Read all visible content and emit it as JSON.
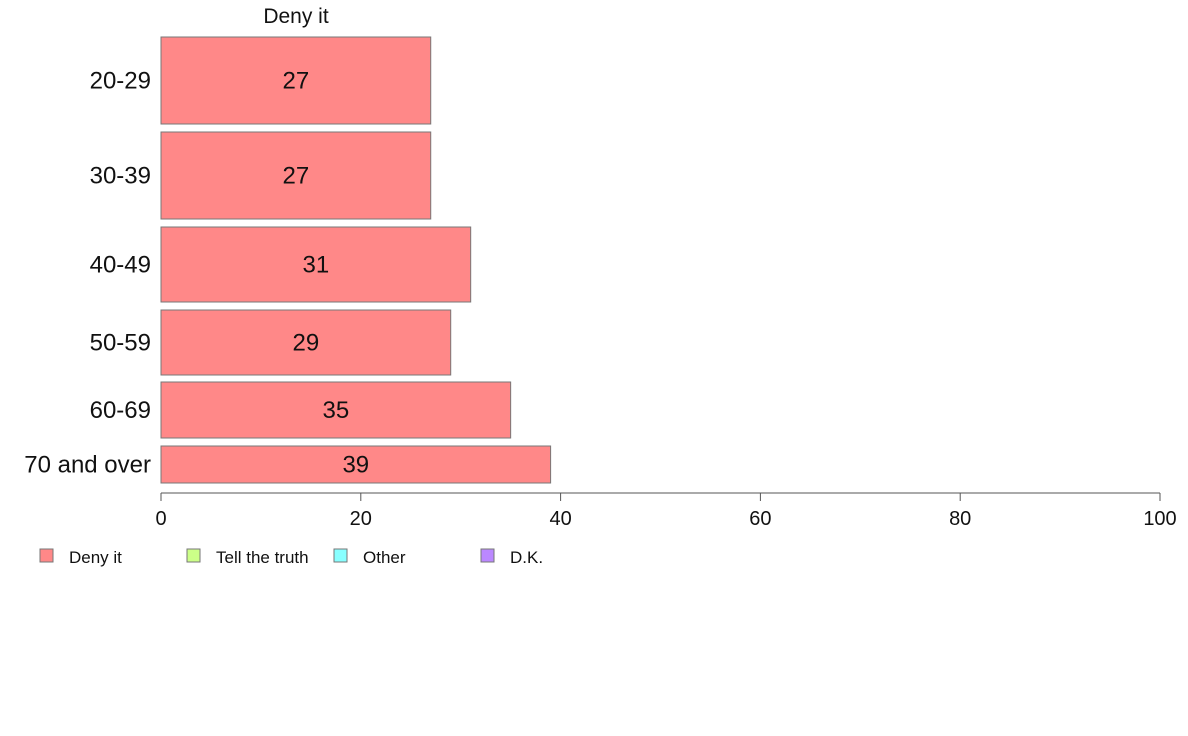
{
  "chart_data": {
    "type": "bar",
    "orientation": "horizontal",
    "title": "Deny it",
    "categories": [
      "20-29",
      "30-39",
      "40-49",
      "50-59",
      "60-69",
      "70 and over"
    ],
    "series": [
      {
        "name": "Deny it",
        "values": [
          27,
          27,
          31,
          29,
          35,
          39
        ],
        "color": "#ff8888"
      }
    ],
    "xlim": [
      0,
      100
    ],
    "xticks": [
      0,
      20,
      40,
      60,
      80,
      100
    ],
    "grid": false,
    "legend": {
      "position": "bottom-left",
      "items": [
        {
          "label": "Deny it",
          "color": "#ff8888"
        },
        {
          "label": "Tell the truth",
          "color": "#ccff88"
        },
        {
          "label": "Other",
          "color": "#88ffff"
        },
        {
          "label": "D.K.",
          "color": "#bb88ff"
        }
      ]
    }
  }
}
